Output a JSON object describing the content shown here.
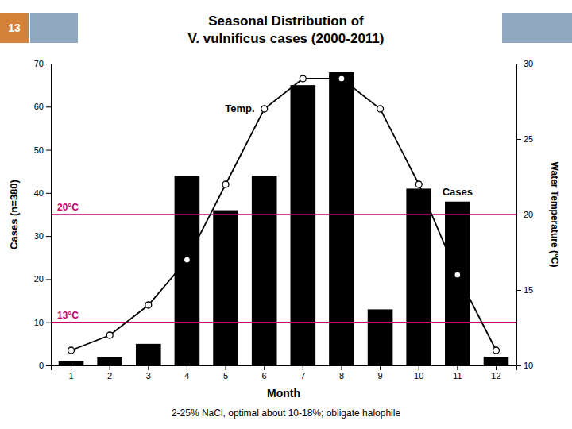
{
  "chart_data": {
    "type": "bar",
    "title": [
      "Seasonal Distribution of",
      "V. vulnificus cases (2000-2011)"
    ],
    "subtitle": "2-25% NaCl, optimal about 10-18%; obligate halophile",
    "annotations": [
      "13"
    ],
    "x_label": "Month",
    "y_label": "Cases (n=380)",
    "y2_label": "Water Temperature (°C)",
    "categories": [
      "1",
      "2",
      "3",
      "4",
      "5",
      "6",
      "7",
      "8",
      "9",
      "10",
      "11",
      "12"
    ],
    "series": [
      {
        "name": "Cases",
        "type": "bar",
        "color": "#000000",
        "values": [
          1,
          2,
          5,
          44,
          36,
          44,
          65,
          68,
          13,
          41,
          38,
          2
        ]
      },
      {
        "name": "Temp.",
        "type": "line",
        "axis": "y2",
        "color": "#000000",
        "marker": "circle",
        "values": [
          11,
          12,
          14,
          17,
          22,
          27,
          29,
          29,
          27,
          22,
          16,
          11
        ]
      }
    ],
    "reference_lines": [
      {
        "value": 35,
        "label": "20°C",
        "color": "#cc006e"
      },
      {
        "value": 10,
        "label": "13°C",
        "color": "#cc006e"
      }
    ],
    "ylim": [
      0,
      70
    ],
    "yticks": [
      0,
      10,
      20,
      30,
      40,
      50,
      60,
      70
    ],
    "y2lim": [
      10,
      30
    ],
    "y2ticks": [
      10,
      15,
      20,
      25,
      30
    ]
  }
}
